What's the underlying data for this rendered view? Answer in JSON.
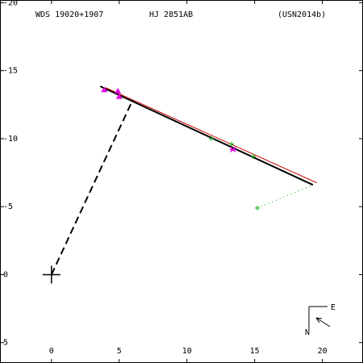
{
  "header": {
    "left": "WDS 19020+1907",
    "center": "HJ 2851AB",
    "right": "(USN2014b)"
  },
  "chart_data": {
    "type": "scatter",
    "xlim": [
      -3.8,
      23
    ],
    "ylim": [
      -6.5,
      20.2
    ],
    "invert_y": true,
    "y_tick_labels_negated": true,
    "x_ticks": [
      0,
      5,
      10,
      15,
      20
    ],
    "y_ticks": [
      20,
      15,
      10,
      5,
      0,
      -5
    ],
    "y_tick_labels": [
      "-20",
      "-15",
      "-10",
      "-5",
      "0",
      "5"
    ],
    "grid": false,
    "origin_marker": [
      0,
      0
    ],
    "series": [
      {
        "kind": "line",
        "color": "#000000",
        "values": [
          [
            3.6,
            13.85
          ],
          [
            19.3,
            6.6
          ]
        ]
      },
      {
        "kind": "line",
        "color": "#cc0000",
        "values": [
          [
            4.0,
            13.75
          ],
          [
            19.6,
            6.75
          ]
        ]
      },
      {
        "kind": "dashed",
        "color": "#000000",
        "values": [
          [
            0.0,
            0.0
          ],
          [
            6.0,
            12.85
          ]
        ]
      },
      {
        "kind": "dotted",
        "color": "#00aa00",
        "values": [
          [
            15.2,
            4.9
          ],
          [
            19.3,
            6.6
          ]
        ]
      },
      {
        "kind": "markers",
        "marker": "triangle",
        "color": "#e000e0",
        "values": [
          [
            4.9,
            13.5
          ],
          [
            3.9,
            13.6
          ],
          [
            5.0,
            13.1
          ]
        ]
      },
      {
        "kind": "markers",
        "marker": "star",
        "color": "#e000e0",
        "values": [
          [
            13.4,
            9.2
          ]
        ]
      },
      {
        "kind": "markers",
        "marker": "plus",
        "color": "#00aa00",
        "values": [
          [
            11.8,
            10.0
          ],
          [
            13.3,
            9.6
          ],
          [
            14.9,
            8.7
          ],
          [
            15.2,
            4.9
          ]
        ]
      }
    ]
  },
  "compass": {
    "east": "E",
    "north": "N"
  }
}
